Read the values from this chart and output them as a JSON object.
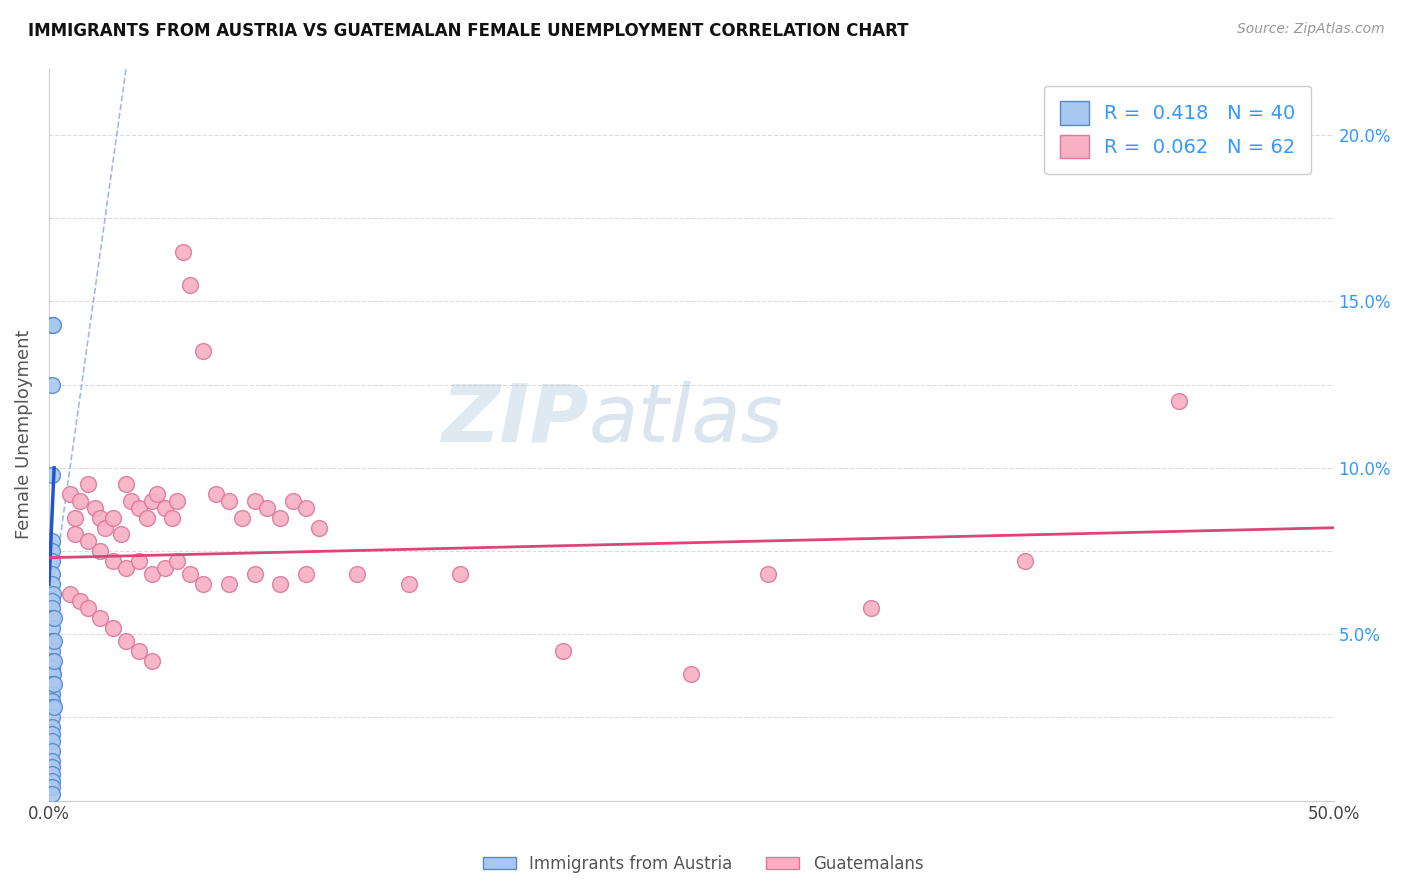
{
  "title": "IMMIGRANTS FROM AUSTRIA VS GUATEMALAN FEMALE UNEMPLOYMENT CORRELATION CHART",
  "source": "Source: ZipAtlas.com",
  "ylabel": "Female Unemployment",
  "xlim": [
    0.0,
    0.5
  ],
  "ylim": [
    0.0,
    0.22
  ],
  "xtick_positions": [
    0.0,
    0.05,
    0.1,
    0.15,
    0.2,
    0.25,
    0.3,
    0.35,
    0.4,
    0.45,
    0.5
  ],
  "xtick_labels": [
    "0.0%",
    "",
    "",
    "",
    "",
    "",
    "",
    "",
    "",
    "",
    "50.0%"
  ],
  "ytick_positions": [
    0.0,
    0.025,
    0.05,
    0.075,
    0.1,
    0.125,
    0.15,
    0.175,
    0.2
  ],
  "ytick_labels_right": [
    "",
    "",
    "5.0%",
    "",
    "10.0%",
    "",
    "15.0%",
    "",
    "20.0%"
  ],
  "austria_R": "0.418",
  "austria_N": "40",
  "guatemalan_R": "0.062",
  "guatemalan_N": "62",
  "austria_color": "#a8c8f0",
  "austria_edge": "#5588cc",
  "guatemalan_color": "#f8b0c4",
  "guatemalan_edge": "#dd7799",
  "trend_austria_color": "#2255cc",
  "trend_guatemalan_color": "#dd4477",
  "dashed_line_color": "#88aadd",
  "watermark_color": "#c5d8ee",
  "background_color": "#ffffff",
  "austria_scatter": [
    [
      0.001,
      0.143
    ],
    [
      0.0015,
      0.143
    ],
    [
      0.001,
      0.125
    ],
    [
      0.001,
      0.098
    ],
    [
      0.001,
      0.078
    ],
    [
      0.001,
      0.075
    ],
    [
      0.001,
      0.072
    ],
    [
      0.001,
      0.068
    ],
    [
      0.001,
      0.065
    ],
    [
      0.0015,
      0.062
    ],
    [
      0.001,
      0.06
    ],
    [
      0.001,
      0.058
    ],
    [
      0.001,
      0.055
    ],
    [
      0.001,
      0.052
    ],
    [
      0.001,
      0.048
    ],
    [
      0.001,
      0.045
    ],
    [
      0.001,
      0.042
    ],
    [
      0.001,
      0.04
    ],
    [
      0.001,
      0.038
    ],
    [
      0.0015,
      0.038
    ],
    [
      0.001,
      0.035
    ],
    [
      0.001,
      0.032
    ],
    [
      0.001,
      0.03
    ],
    [
      0.001,
      0.028
    ],
    [
      0.001,
      0.025
    ],
    [
      0.001,
      0.022
    ],
    [
      0.001,
      0.02
    ],
    [
      0.001,
      0.018
    ],
    [
      0.001,
      0.015
    ],
    [
      0.001,
      0.012
    ],
    [
      0.001,
      0.01
    ],
    [
      0.001,
      0.008
    ],
    [
      0.001,
      0.006
    ],
    [
      0.001,
      0.004
    ],
    [
      0.001,
      0.002
    ],
    [
      0.002,
      0.055
    ],
    [
      0.002,
      0.048
    ],
    [
      0.002,
      0.042
    ],
    [
      0.002,
      0.035
    ],
    [
      0.002,
      0.028
    ]
  ],
  "guatemalan_scatter": [
    [
      0.008,
      0.092
    ],
    [
      0.01,
      0.085
    ],
    [
      0.012,
      0.09
    ],
    [
      0.015,
      0.095
    ],
    [
      0.018,
      0.088
    ],
    [
      0.02,
      0.085
    ],
    [
      0.022,
      0.082
    ],
    [
      0.025,
      0.085
    ],
    [
      0.028,
      0.08
    ],
    [
      0.03,
      0.095
    ],
    [
      0.032,
      0.09
    ],
    [
      0.035,
      0.088
    ],
    [
      0.038,
      0.085
    ],
    [
      0.04,
      0.09
    ],
    [
      0.042,
      0.092
    ],
    [
      0.045,
      0.088
    ],
    [
      0.048,
      0.085
    ],
    [
      0.05,
      0.09
    ],
    [
      0.052,
      0.165
    ],
    [
      0.055,
      0.155
    ],
    [
      0.06,
      0.135
    ],
    [
      0.065,
      0.092
    ],
    [
      0.07,
      0.09
    ],
    [
      0.075,
      0.085
    ],
    [
      0.08,
      0.09
    ],
    [
      0.085,
      0.088
    ],
    [
      0.09,
      0.085
    ],
    [
      0.095,
      0.09
    ],
    [
      0.1,
      0.088
    ],
    [
      0.105,
      0.082
    ],
    [
      0.01,
      0.08
    ],
    [
      0.015,
      0.078
    ],
    [
      0.02,
      0.075
    ],
    [
      0.025,
      0.072
    ],
    [
      0.03,
      0.07
    ],
    [
      0.035,
      0.072
    ],
    [
      0.04,
      0.068
    ],
    [
      0.045,
      0.07
    ],
    [
      0.05,
      0.072
    ],
    [
      0.055,
      0.068
    ],
    [
      0.06,
      0.065
    ],
    [
      0.07,
      0.065
    ],
    [
      0.08,
      0.068
    ],
    [
      0.09,
      0.065
    ],
    [
      0.1,
      0.068
    ],
    [
      0.12,
      0.068
    ],
    [
      0.14,
      0.065
    ],
    [
      0.16,
      0.068
    ],
    [
      0.008,
      0.062
    ],
    [
      0.012,
      0.06
    ],
    [
      0.015,
      0.058
    ],
    [
      0.02,
      0.055
    ],
    [
      0.025,
      0.052
    ],
    [
      0.03,
      0.048
    ],
    [
      0.035,
      0.045
    ],
    [
      0.04,
      0.042
    ],
    [
      0.28,
      0.068
    ],
    [
      0.32,
      0.058
    ],
    [
      0.38,
      0.072
    ],
    [
      0.44,
      0.12
    ],
    [
      0.2,
      0.045
    ],
    [
      0.25,
      0.038
    ]
  ]
}
